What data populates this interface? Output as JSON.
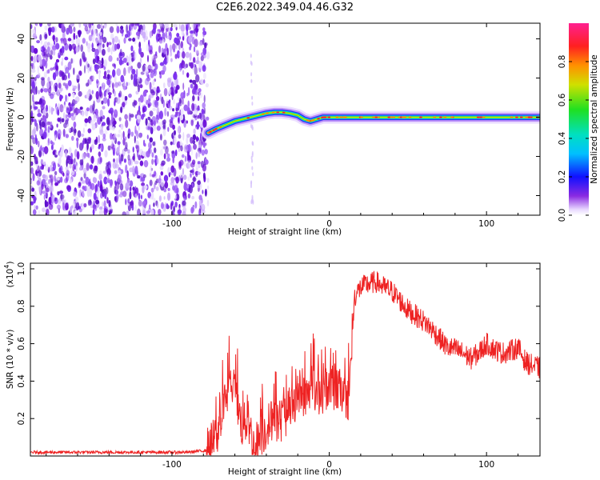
{
  "title": "C2E6.2022.349.04.46.G32",
  "chart_data": [
    {
      "type": "heatmap",
      "xlabel": "Height of straight line (km)",
      "ylabel": "Frequency (Hz)",
      "xlim": [
        -190,
        134
      ],
      "ylim": [
        -50,
        48
      ],
      "xticks": [
        -100,
        0,
        100
      ],
      "yticks": [
        -40,
        -20,
        0,
        20,
        40
      ],
      "colorbar": {
        "label": "Normalized spectral amplitude",
        "range": [
          0,
          1
        ],
        "ticks": [
          "0.0",
          "0.2",
          "0.4",
          "0.6",
          "0.8"
        ]
      },
      "noise_region_x": [
        -190,
        -77
      ],
      "tone_track": {
        "x": [
          -77,
          -72,
          -66,
          -60,
          -55,
          -50,
          -45,
          -40,
          -35,
          -30,
          -25,
          -20,
          -16,
          -12,
          -8,
          -4,
          0,
          10,
          30,
          60,
          90,
          110,
          134
        ],
        "freq": [
          -8,
          -6,
          -4,
          -2,
          -1,
          0,
          1,
          2,
          2.5,
          2.5,
          2,
          1,
          -1,
          -2,
          -1,
          0,
          0,
          0,
          0,
          0,
          0,
          0,
          0
        ]
      }
    },
    {
      "type": "line",
      "xlabel": "Height of straight line (km)",
      "ylabel": "SNR (10 * v/v)",
      "yscale_label": "(x10",
      "yscale_exp": "4",
      "xlim": [
        -190,
        134
      ],
      "ylim": [
        0,
        1.03
      ],
      "xticks": [
        -100,
        0,
        100
      ],
      "yticks": [
        "0.2",
        "0.4",
        "0.6",
        "0.8",
        "1.0"
      ],
      "color": "#ee2222",
      "series": [
        {
          "x": [
            -190,
            -150,
            -120,
            -90,
            -78,
            -72,
            -66,
            -62,
            -58,
            -55,
            -52,
            -48,
            -44,
            -40,
            -36,
            -32,
            -28,
            -24,
            -20,
            -16,
            -12,
            -8,
            -4,
            -2,
            0,
            4,
            8,
            12,
            14,
            16,
            20,
            25,
            30,
            35,
            40,
            45,
            50,
            55,
            60,
            65,
            70,
            75,
            80,
            85,
            90,
            95,
            100,
            105,
            110,
            115,
            120,
            125,
            130,
            134
          ],
          "y": [
            0.02,
            0.02,
            0.02,
            0.02,
            0.03,
            0.1,
            0.3,
            0.4,
            0.25,
            0.15,
            0.2,
            0.05,
            0.1,
            0.15,
            0.2,
            0.18,
            0.22,
            0.25,
            0.3,
            0.28,
            0.38,
            0.32,
            0.34,
            0.36,
            0.38,
            0.35,
            0.35,
            0.3,
            0.5,
            0.85,
            0.9,
            0.92,
            0.93,
            0.9,
            0.88,
            0.83,
            0.78,
            0.75,
            0.72,
            0.68,
            0.63,
            0.58,
            0.57,
            0.55,
            0.52,
            0.55,
            0.6,
            0.57,
            0.55,
            0.56,
            0.58,
            0.5,
            0.48,
            0.47
          ]
        }
      ]
    }
  ]
}
